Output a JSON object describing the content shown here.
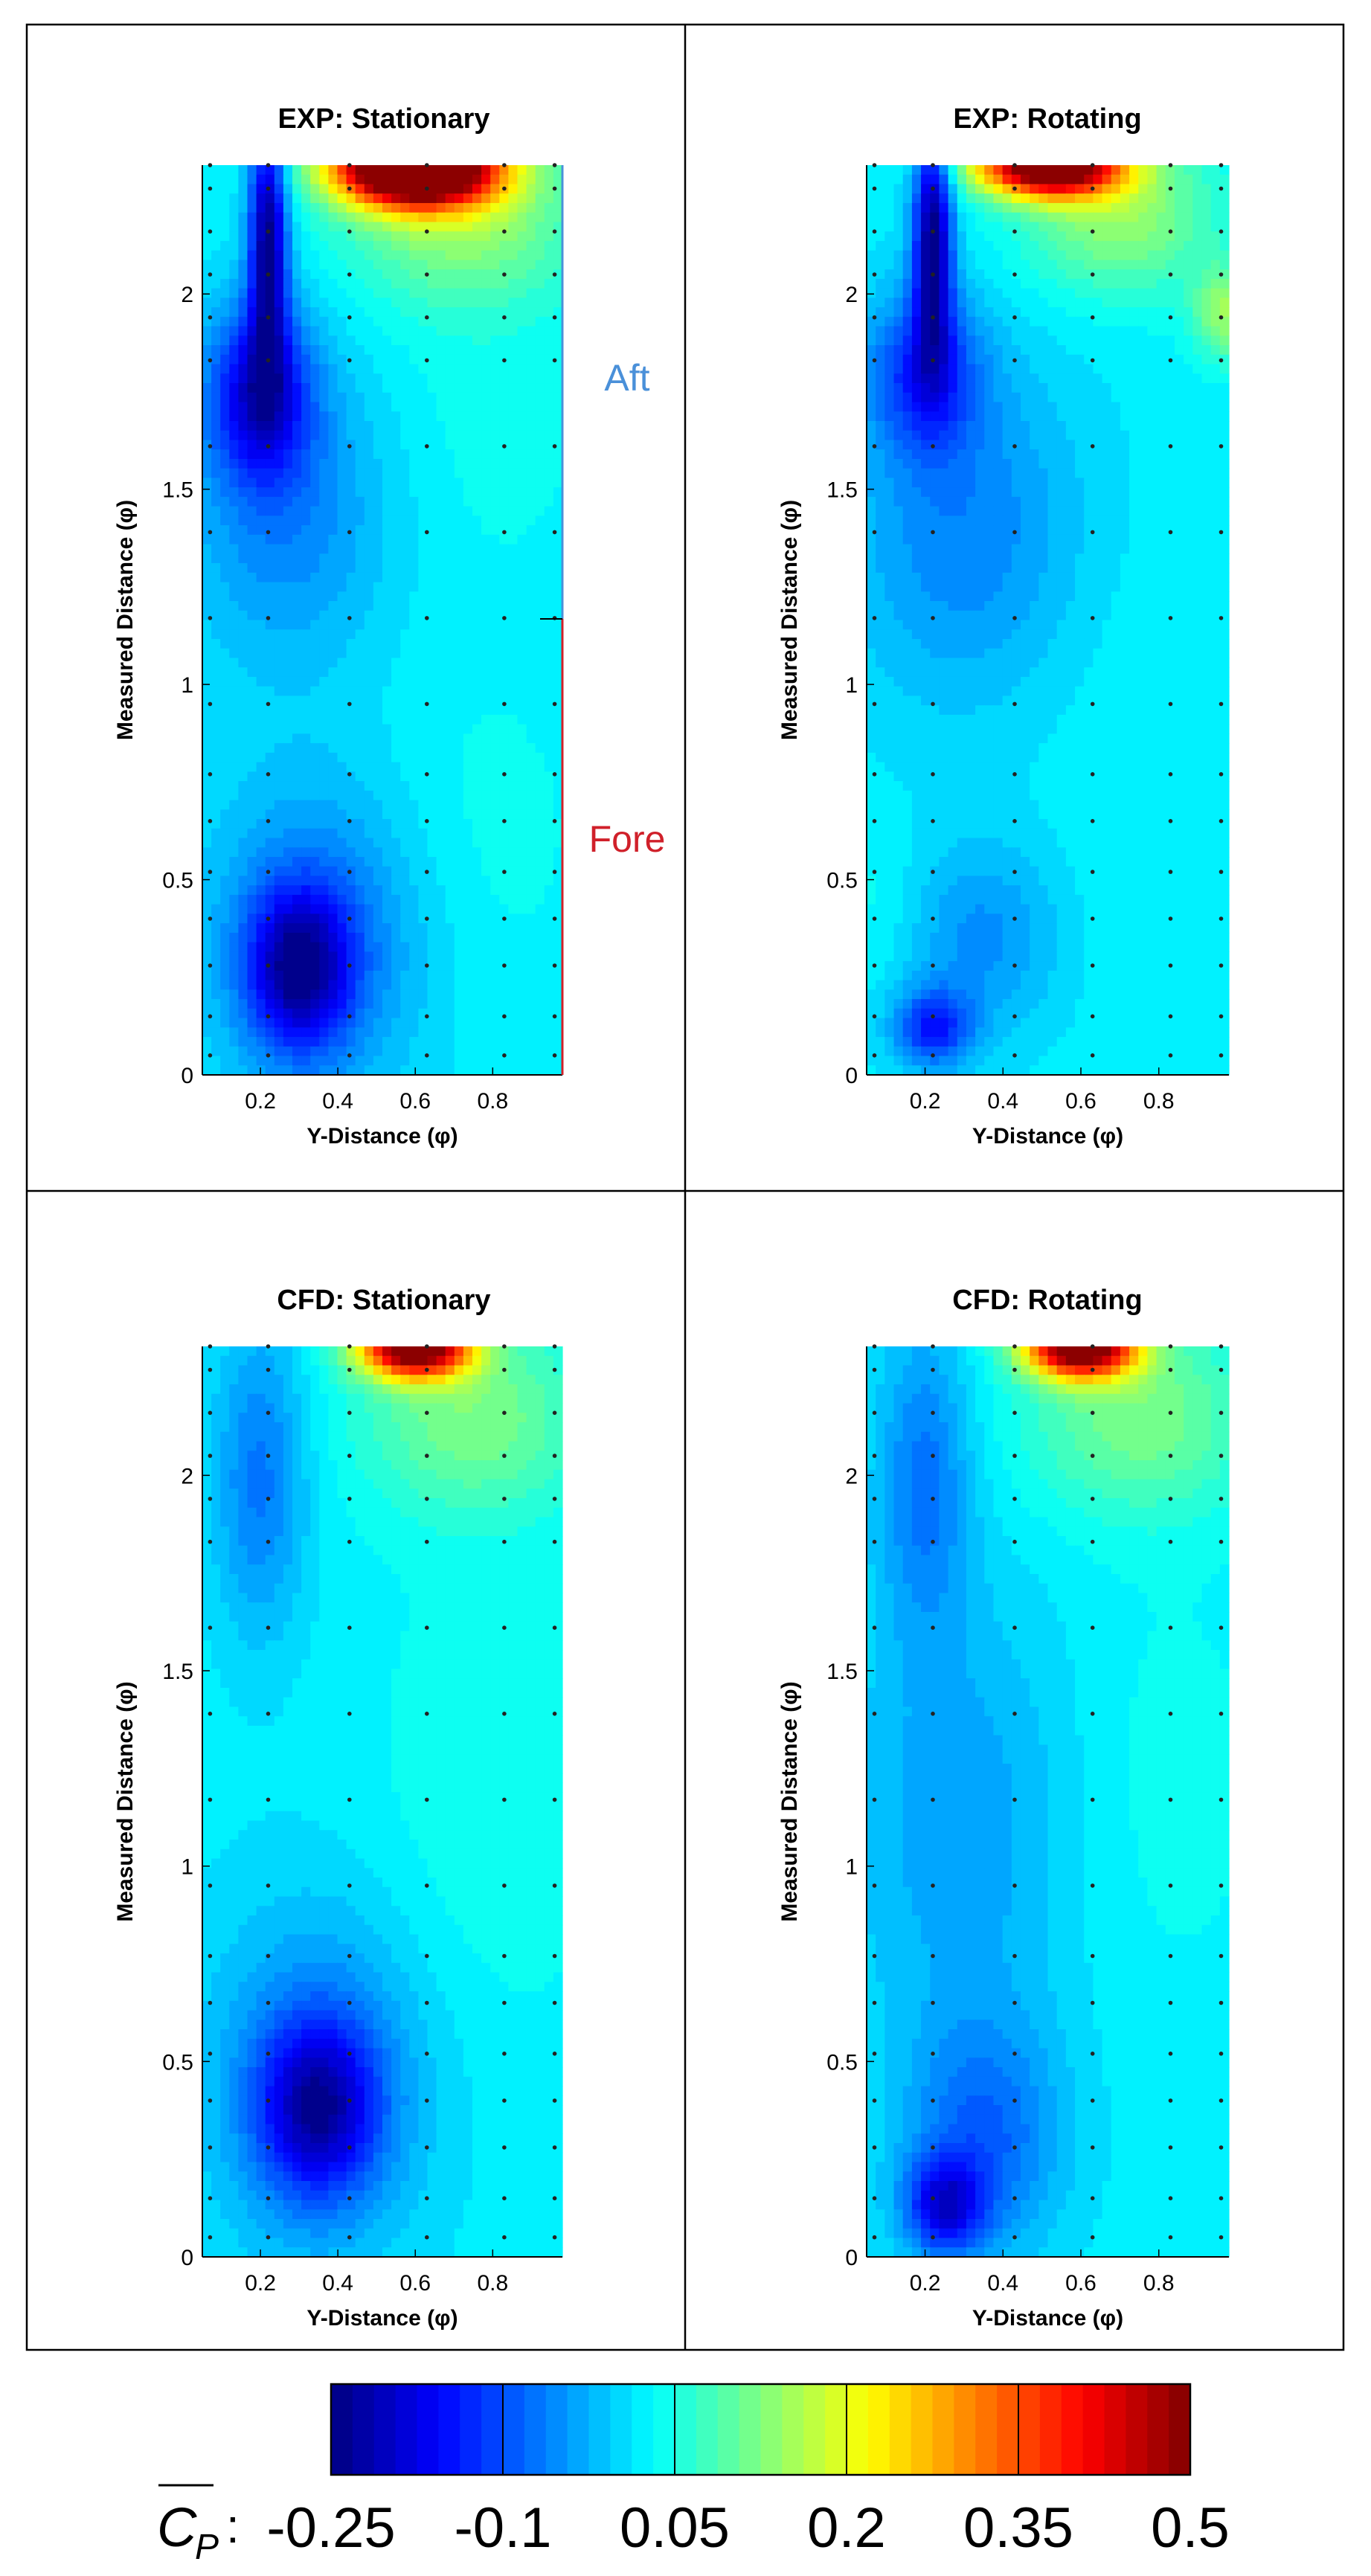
{
  "figure": {
    "colorbar": {
      "label_symbol": "C",
      "label_subscript": "P",
      "label_colon": ":",
      "ticks": [
        "-0.25",
        "-0.1",
        "0.05",
        "0.2",
        "0.35",
        "0.5"
      ],
      "range": [
        -0.25,
        0.5
      ],
      "colormap": "jet",
      "levels": 40
    }
  },
  "chart_data": [
    {
      "type": "heatmap",
      "id": "exp-stationary",
      "title": "EXP: Stationary",
      "xlabel": "Y-Distance (φ)",
      "ylabel": "Measured Distance (φ)",
      "xlim": [
        0.05,
        0.98
      ],
      "ylim": [
        0,
        2.33
      ],
      "xticks": [
        0.2,
        0.4,
        0.6,
        0.8
      ],
      "yticks": [
        0,
        0.5,
        1,
        1.5,
        2
      ],
      "xtick_labels": [
        "0.2",
        "0.4",
        "0.6",
        "0.8"
      ],
      "ytick_labels": [
        "0",
        "0.5",
        "1",
        "1.5",
        "2"
      ],
      "sensor_x": [
        0.07,
        0.22,
        0.43,
        0.63,
        0.83,
        0.96
      ],
      "sensor_y": [
        0.05,
        0.15,
        0.28,
        0.4,
        0.52,
        0.65,
        0.77,
        0.95,
        1.17,
        1.39,
        1.61,
        1.83,
        1.94,
        2.05,
        2.16,
        2.27,
        2.33
      ],
      "annotations": [
        {
          "text": "Aft",
          "color": "#4a90d9"
        },
        {
          "text": "Fore",
          "color": "#d0202a"
        }
      ],
      "features": [
        {
          "x": 0.22,
          "y": 2.15,
          "cp": -0.24,
          "rx": 0.05,
          "ry": 0.32
        },
        {
          "x": 0.2,
          "y": 1.75,
          "cp": -0.17,
          "rx": 0.13,
          "ry": 0.22
        },
        {
          "x": 0.27,
          "y": 1.45,
          "cp": -0.06,
          "rx": 0.27,
          "ry": 0.4
        },
        {
          "x": 0.3,
          "y": 0.27,
          "cp": -0.18,
          "rx": 0.13,
          "ry": 0.2
        },
        {
          "x": 0.35,
          "y": 0.35,
          "cp": -0.08,
          "rx": 0.28,
          "ry": 0.4
        },
        {
          "x": 0.6,
          "y": 2.33,
          "cp": 0.78,
          "rx": 0.2,
          "ry": 0.1
        },
        {
          "x": 0.72,
          "y": 2.2,
          "cp": 0.14,
          "rx": 0.3,
          "ry": 0.22
        },
        {
          "x": 0.78,
          "y": 1.7,
          "cp": 0.04,
          "rx": 0.3,
          "ry": 0.45
        },
        {
          "x": 0.75,
          "y": 0.6,
          "cp": 0.04,
          "rx": 0.3,
          "ry": 0.45
        }
      ]
    },
    {
      "type": "heatmap",
      "id": "exp-rotating",
      "title": "EXP: Rotating",
      "xlabel": "Y-Distance (φ)",
      "ylabel": "Measured Distance (φ)",
      "xlim": [
        0.05,
        0.98
      ],
      "ylim": [
        0,
        2.33
      ],
      "xticks": [
        0.2,
        0.4,
        0.6,
        0.8
      ],
      "yticks": [
        0,
        0.5,
        1,
        1.5,
        2
      ],
      "xtick_labels": [
        "0.2",
        "0.4",
        "0.6",
        "0.8"
      ],
      "ytick_labels": [
        "0",
        "0.5",
        "1",
        "1.5",
        "2"
      ],
      "sensor_x": [
        0.07,
        0.22,
        0.43,
        0.63,
        0.83,
        0.96
      ],
      "sensor_y": [
        0.05,
        0.15,
        0.28,
        0.4,
        0.52,
        0.65,
        0.77,
        0.95,
        1.17,
        1.39,
        1.61,
        1.83,
        1.94,
        2.05,
        2.16,
        2.27,
        2.33
      ],
      "annotations": [],
      "features": [
        {
          "x": 0.22,
          "y": 2.15,
          "cp": -0.24,
          "rx": 0.05,
          "ry": 0.3
        },
        {
          "x": 0.2,
          "y": 1.8,
          "cp": -0.12,
          "rx": 0.14,
          "ry": 0.2
        },
        {
          "x": 0.3,
          "y": 1.4,
          "cp": -0.06,
          "rx": 0.3,
          "ry": 0.45
        },
        {
          "x": 0.22,
          "y": 0.12,
          "cp": -0.13,
          "rx": 0.1,
          "ry": 0.1
        },
        {
          "x": 0.35,
          "y": 0.35,
          "cp": -0.05,
          "rx": 0.2,
          "ry": 0.25
        },
        {
          "x": 0.52,
          "y": 2.33,
          "cp": 0.6,
          "rx": 0.18,
          "ry": 0.08
        },
        {
          "x": 0.7,
          "y": 2.2,
          "cp": 0.14,
          "rx": 0.25,
          "ry": 0.2
        },
        {
          "x": 0.97,
          "y": 1.95,
          "cp": 0.14,
          "rx": 0.08,
          "ry": 0.12
        },
        {
          "x": 0.78,
          "y": 0.8,
          "cp": 0.03,
          "rx": 0.3,
          "ry": 0.6
        },
        {
          "x": 0.08,
          "y": 0.45,
          "cp": 0.04,
          "rx": 0.1,
          "ry": 0.2
        }
      ]
    },
    {
      "type": "heatmap",
      "id": "cfd-stationary",
      "title": "CFD: Stationary",
      "xlabel": "Y-Distance (φ)",
      "ylabel": "Measured Distance (φ)",
      "xlim": [
        0.05,
        0.98
      ],
      "ylim": [
        0,
        2.33
      ],
      "xticks": [
        0.2,
        0.4,
        0.6,
        0.8
      ],
      "yticks": [
        0,
        0.5,
        1,
        1.5,
        2
      ],
      "xtick_labels": [
        "0.2",
        "0.4",
        "0.6",
        "0.8"
      ],
      "ytick_labels": [
        "0",
        "0.5",
        "1",
        "1.5",
        "2"
      ],
      "sensor_x": [
        0.07,
        0.22,
        0.43,
        0.63,
        0.83,
        0.96
      ],
      "sensor_y": [
        0.05,
        0.15,
        0.28,
        0.4,
        0.52,
        0.65,
        0.77,
        0.95,
        1.17,
        1.39,
        1.61,
        1.83,
        1.94,
        2.05,
        2.16,
        2.27,
        2.33
      ],
      "annotations": [],
      "features": [
        {
          "x": 0.2,
          "y": 2.0,
          "cp": -0.07,
          "rx": 0.12,
          "ry": 0.4
        },
        {
          "x": 0.35,
          "y": 0.38,
          "cp": -0.16,
          "rx": 0.15,
          "ry": 0.22
        },
        {
          "x": 0.35,
          "y": 0.45,
          "cp": -0.07,
          "rx": 0.28,
          "ry": 0.45
        },
        {
          "x": 0.6,
          "y": 2.33,
          "cp": 0.55,
          "rx": 0.14,
          "ry": 0.08
        },
        {
          "x": 0.75,
          "y": 2.15,
          "cp": 0.12,
          "rx": 0.3,
          "ry": 0.25
        },
        {
          "x": 0.8,
          "y": 1.2,
          "cp": 0.05,
          "rx": 0.3,
          "ry": 0.6
        }
      ]
    },
    {
      "type": "heatmap",
      "id": "cfd-rotating",
      "title": "CFD: Rotating",
      "xlabel": "Y-Distance (φ)",
      "ylabel": "Measured Distance (φ)",
      "xlim": [
        0.05,
        0.98
      ],
      "ylim": [
        0,
        2.33
      ],
      "xticks": [
        0.2,
        0.4,
        0.6,
        0.8
      ],
      "yticks": [
        0,
        0.5,
        1,
        1.5,
        2
      ],
      "xtick_labels": [
        "0.2",
        "0.4",
        "0.6",
        "0.8"
      ],
      "ytick_labels": [
        "0",
        "0.5",
        "1",
        "1.5",
        "2"
      ],
      "sensor_x": [
        0.07,
        0.22,
        0.43,
        0.63,
        0.83,
        0.96
      ],
      "sensor_y": [
        0.05,
        0.15,
        0.28,
        0.4,
        0.52,
        0.65,
        0.77,
        0.95,
        1.17,
        1.39,
        1.61,
        1.83,
        1.94,
        2.05,
        2.16,
        2.27,
        2.33
      ],
      "annotations": [],
      "features": [
        {
          "x": 0.2,
          "y": 2.0,
          "cp": -0.07,
          "rx": 0.12,
          "ry": 0.4
        },
        {
          "x": 0.25,
          "y": 0.13,
          "cp": -0.15,
          "rx": 0.1,
          "ry": 0.12
        },
        {
          "x": 0.35,
          "y": 0.3,
          "cp": -0.08,
          "rx": 0.2,
          "ry": 0.3
        },
        {
          "x": 0.3,
          "y": 1.1,
          "cp": -0.04,
          "rx": 0.3,
          "ry": 0.6
        },
        {
          "x": 0.6,
          "y": 2.33,
          "cp": 0.55,
          "rx": 0.14,
          "ry": 0.08
        },
        {
          "x": 0.75,
          "y": 2.15,
          "cp": 0.12,
          "rx": 0.3,
          "ry": 0.25
        },
        {
          "x": 0.8,
          "y": 1.2,
          "cp": 0.04,
          "rx": 0.3,
          "ry": 0.6
        }
      ]
    }
  ]
}
